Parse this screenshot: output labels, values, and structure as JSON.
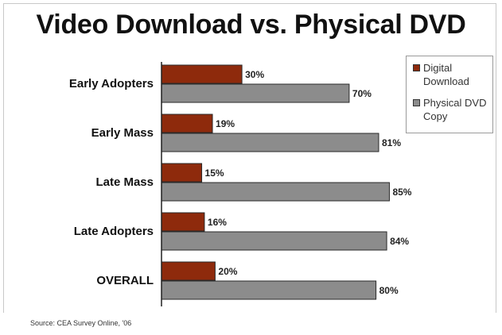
{
  "title": "Video Download vs. Physical DVD",
  "source": "Source: CEA Survey Online, '06",
  "colors": {
    "digital": "#8e2a0c",
    "physical": "#8c8c8c"
  },
  "chart_data": {
    "type": "bar",
    "orientation": "horizontal",
    "title": "Video Download vs. Physical DVD",
    "categories": [
      "Early Adopters",
      "Early Mass",
      "Late Mass",
      "Late Adopters",
      "OVERALL"
    ],
    "series": [
      {
        "name": "Digital Download",
        "values": [
          30,
          19,
          15,
          16,
          20
        ],
        "labels": [
          "30%",
          "19%",
          "15%",
          "16%",
          "20%"
        ]
      },
      {
        "name": "Physical DVD Copy",
        "values": [
          70,
          81,
          85,
          84,
          80
        ],
        "labels": [
          "70%",
          "81%",
          "85%",
          "84%",
          "80%"
        ]
      }
    ],
    "xlim": [
      0,
      100
    ],
    "grid": false,
    "legend": "top-right"
  }
}
